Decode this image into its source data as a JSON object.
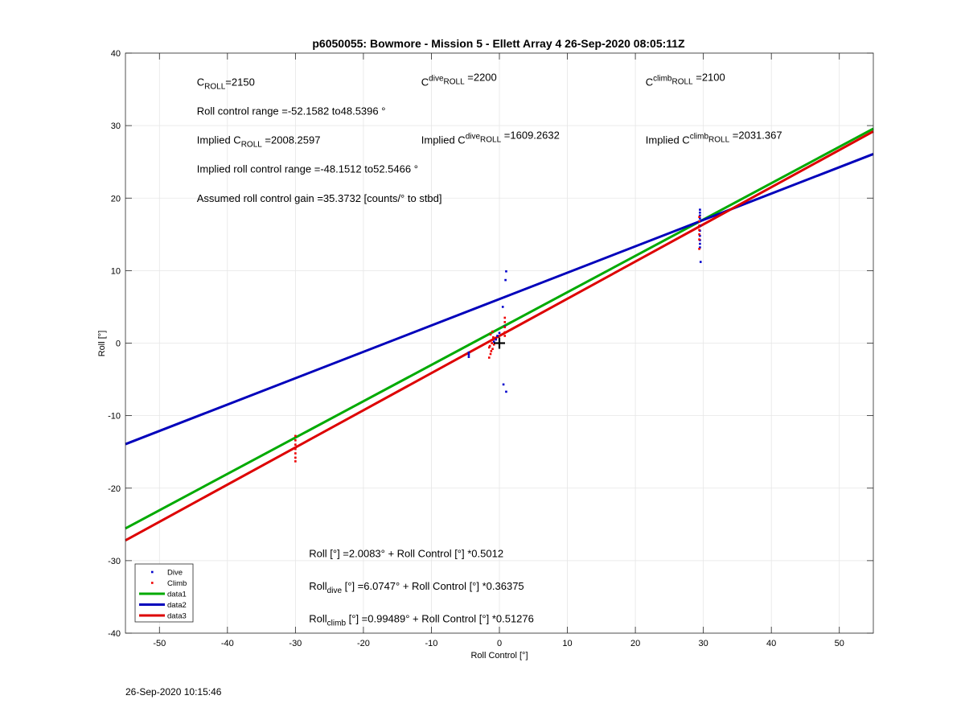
{
  "chart_data": {
    "type": "scatter",
    "title": "p6050055: Bowmore - Mission 5 - Ellett Array 4 26-Sep-2020 08:05:11Z",
    "xlabel": "Roll Control [°]",
    "ylabel": "Roll [°]",
    "xlim": [
      -55,
      55
    ],
    "ylim": [
      -40,
      40
    ],
    "xticks": [
      -50,
      -40,
      -30,
      -20,
      -10,
      0,
      10,
      20,
      30,
      40,
      50
    ],
    "yticks": [
      -40,
      -30,
      -20,
      -10,
      0,
      10,
      20,
      30,
      40
    ],
    "grid": true,
    "legend_position": "bottom-left",
    "series": [
      {
        "name": "Dive",
        "kind": "markers",
        "color": "#0000cc",
        "points": [
          [
            -4.5,
            -1.9
          ],
          [
            -4.5,
            -1.6
          ],
          [
            -4.5,
            -1.3
          ],
          [
            0.5,
            5.0
          ],
          [
            0.8,
            2.3
          ],
          [
            1.0,
            9.9
          ],
          [
            0.9,
            8.7
          ],
          [
            0.6,
            -5.7
          ],
          [
            1.0,
            -6.7
          ],
          [
            -0.5,
            0.5
          ],
          [
            -0.3,
            1.0
          ],
          [
            0.0,
            1.4
          ],
          [
            -0.8,
            0.2
          ],
          [
            29.5,
            18.4
          ],
          [
            29.5,
            18.0
          ],
          [
            29.5,
            17.6
          ],
          [
            29.5,
            17.2
          ],
          [
            29.5,
            16.8
          ],
          [
            29.5,
            16.2
          ],
          [
            29.5,
            15.5
          ],
          [
            29.5,
            14.8
          ],
          [
            29.5,
            14.2
          ],
          [
            29.5,
            13.7
          ],
          [
            29.5,
            13.2
          ],
          [
            29.6,
            11.2
          ]
        ]
      },
      {
        "name": "Climb",
        "kind": "markers",
        "color": "#ee0000",
        "points": [
          [
            -30,
            -12.8
          ],
          [
            -30,
            -13.4
          ],
          [
            -30,
            -14.0
          ],
          [
            -30,
            -14.6
          ],
          [
            -30,
            -15.2
          ],
          [
            -30,
            -15.8
          ],
          [
            -30,
            -16.3
          ],
          [
            -1.5,
            -2.0
          ],
          [
            -1.3,
            -1.5
          ],
          [
            -1.2,
            -1.1
          ],
          [
            -1.0,
            -0.8
          ],
          [
            -1.4,
            -0.4
          ],
          [
            -1.1,
            0.0
          ],
          [
            -1.2,
            0.4
          ],
          [
            -0.9,
            0.8
          ],
          [
            -1.3,
            1.2
          ],
          [
            -1.0,
            1.6
          ],
          [
            -0.8,
            -0.2
          ],
          [
            -1.5,
            -0.6
          ],
          [
            0.8,
            1.5
          ],
          [
            0.8,
            2.2
          ],
          [
            0.8,
            2.9
          ],
          [
            0.8,
            3.5
          ],
          [
            0.8,
            1.0
          ],
          [
            29.4,
            17.4
          ],
          [
            29.4,
            16.8
          ],
          [
            29.4,
            16.2
          ],
          [
            29.4,
            15.6
          ],
          [
            29.4,
            15.0
          ],
          [
            29.4,
            14.3
          ],
          [
            29.4,
            13.0
          ]
        ]
      },
      {
        "name": "data1",
        "kind": "line",
        "color": "#00aa00",
        "intercept": 2.0083,
        "slope": 0.5012
      },
      {
        "name": "data2",
        "kind": "line",
        "color": "#0000bb",
        "intercept": 6.0747,
        "slope": 0.36375
      },
      {
        "name": "data3",
        "kind": "line",
        "color": "#dd0000",
        "intercept": 0.99489,
        "slope": 0.51276
      }
    ],
    "marker": {
      "x": 0,
      "y": 0,
      "symbol": "+"
    },
    "annotations": [
      {
        "parts": [
          [
            "C",
            ""
          ],
          [
            "ROLL",
            "sub"
          ],
          [
            "=2150",
            ""
          ]
        ],
        "x": -44.5,
        "y": 35.5
      },
      {
        "parts": [
          [
            "C",
            ""
          ],
          [
            "dive",
            "sup"
          ],
          [
            "ROLL",
            "sub"
          ],
          [
            " =2200",
            ""
          ]
        ],
        "x": -11.5,
        "y": 35.5
      },
      {
        "parts": [
          [
            "C",
            ""
          ],
          [
            "climb",
            "sup"
          ],
          [
            "ROLL",
            "sub"
          ],
          [
            " =2100",
            ""
          ]
        ],
        "x": 21.5,
        "y": 35.5
      },
      {
        "parts": [
          [
            "Roll control range =-52.1582 to48.5396 °",
            ""
          ]
        ],
        "x": -44.5,
        "y": 31.5
      },
      {
        "parts": [
          [
            "Implied C",
            ""
          ],
          [
            "ROLL",
            "sub"
          ],
          [
            " =2008.2597",
            ""
          ]
        ],
        "x": -44.5,
        "y": 27.5
      },
      {
        "parts": [
          [
            "Implied C",
            ""
          ],
          [
            "dive",
            "sup"
          ],
          [
            "ROLL",
            "sub"
          ],
          [
            " =1609.2632",
            ""
          ]
        ],
        "x": -11.5,
        "y": 27.5
      },
      {
        "parts": [
          [
            "Implied C",
            ""
          ],
          [
            "climb",
            "sup"
          ],
          [
            "ROLL",
            "sub"
          ],
          [
            " =2031.367",
            ""
          ]
        ],
        "x": 21.5,
        "y": 27.5
      },
      {
        "parts": [
          [
            "Implied roll control range =-48.1512 to52.5466 °",
            ""
          ]
        ],
        "x": -44.5,
        "y": 23.5
      },
      {
        "parts": [
          [
            "Assumed roll control gain =35.3732 [counts/° to stbd]",
            ""
          ]
        ],
        "x": -44.5,
        "y": 19.5
      },
      {
        "parts": [
          [
            "Roll [°] =2.0083° + Roll Control [°] *0.5012",
            ""
          ]
        ],
        "x": -28,
        "y": -29.5
      },
      {
        "parts": [
          [
            "Roll",
            ""
          ],
          [
            "dive",
            "sub"
          ],
          [
            " [°] =6.0747° + Roll Control [°] *0.36375",
            ""
          ]
        ],
        "x": -28,
        "y": -34
      },
      {
        "parts": [
          [
            "Roll",
            ""
          ],
          [
            "climb",
            "sub"
          ],
          [
            " [°] =0.99489° + Roll Control [°] *0.51276",
            ""
          ]
        ],
        "x": -28,
        "y": -38.5
      }
    ]
  },
  "footer_timestamp": "26-Sep-2020 10:15:46"
}
